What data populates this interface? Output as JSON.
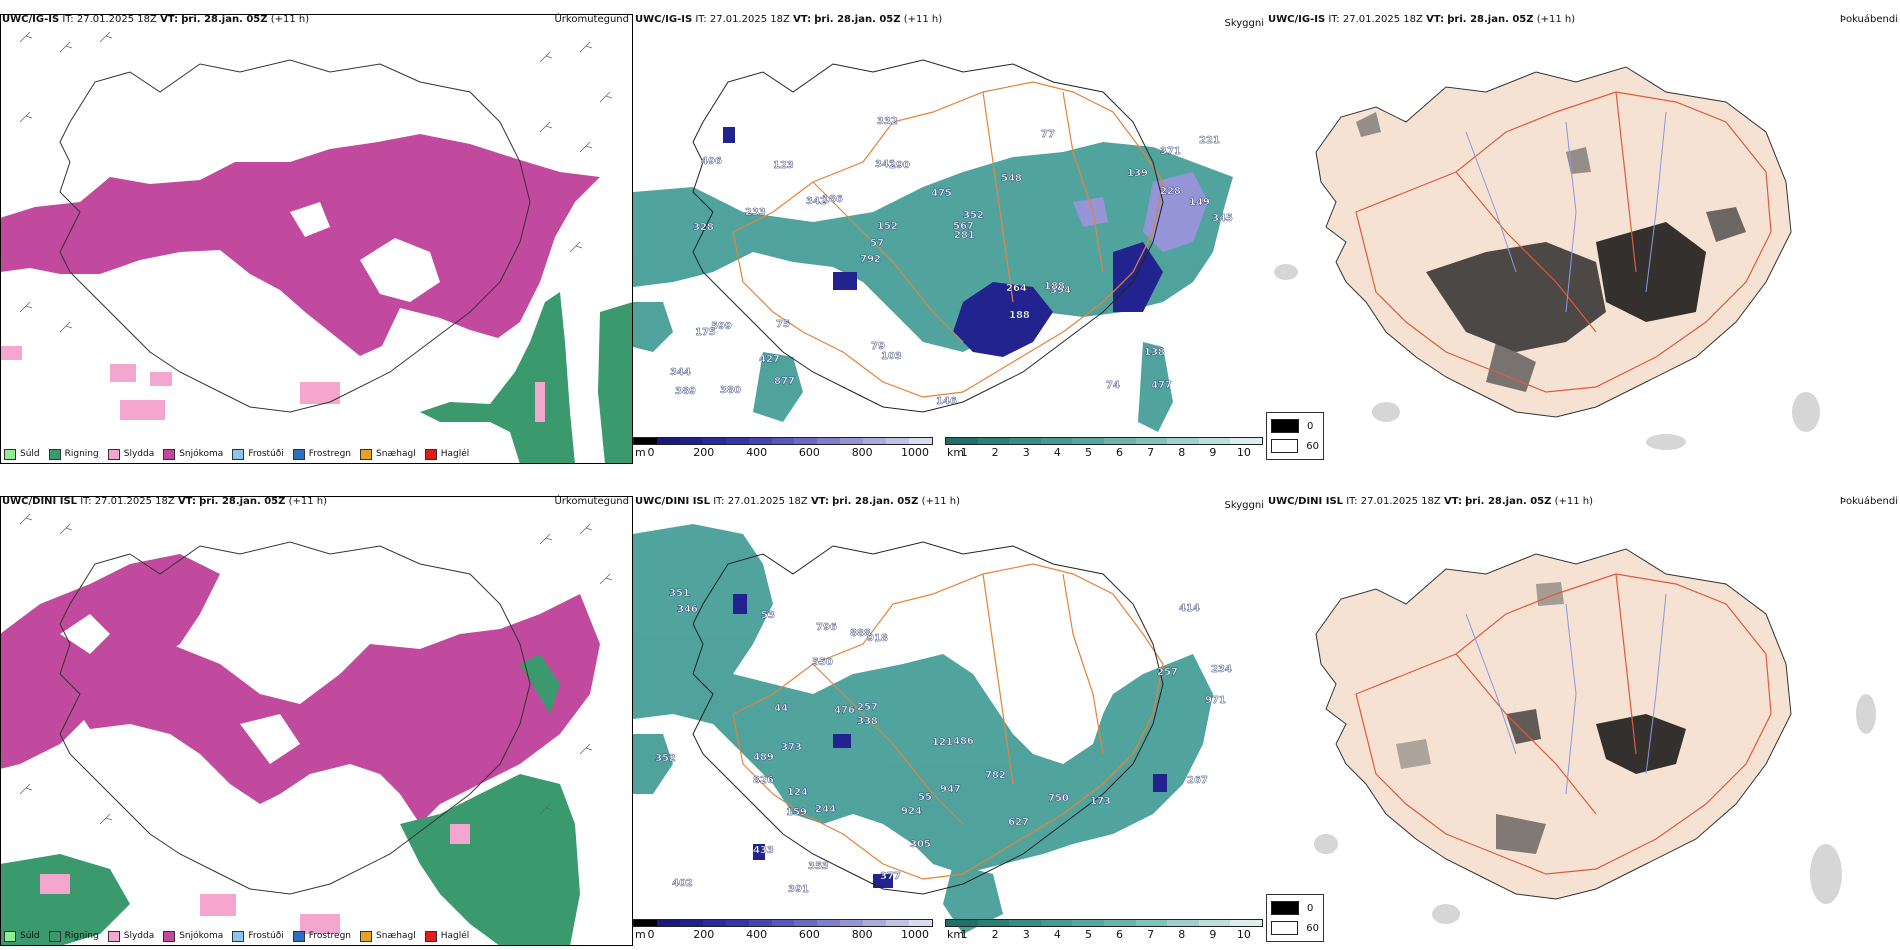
{
  "rows": [
    {
      "model": "UWC/IG-IS",
      "it_label": "IT:",
      "it_value": "27.01.2025 18Z",
      "vt_label": "VT:",
      "vt_value": "þri. 28.jan. 05Z",
      "lead": "(+11 h)",
      "precip_numbers": [
        "477",
        "328",
        "371",
        "792",
        "548",
        "380",
        "341",
        "475",
        "599",
        "186",
        "344",
        "427",
        "290",
        "352",
        "394",
        "496",
        "332",
        "345",
        "264",
        "228",
        "57",
        "79",
        "152",
        "123",
        "77",
        "75",
        "74",
        "138",
        "188",
        "146",
        "342",
        "233",
        "188",
        "877",
        "149",
        "567",
        "389",
        "103",
        "281",
        "175",
        "139",
        "221"
      ],
      "fog_density": "high"
    },
    {
      "model": "UWC/DINI ISL",
      "it_label": "IT:",
      "it_value": "27.01.2025 18Z",
      "vt_label": "VT:",
      "vt_value": "þri. 28.jan. 05Z",
      "lead": "(+11 h)",
      "precip_numbers": [
        "346",
        "351",
        "352",
        "414",
        "234",
        "627",
        "918",
        "244",
        "402",
        "750",
        "159",
        "486",
        "391",
        "826",
        "55",
        "476",
        "924",
        "433",
        "550",
        "257",
        "971",
        "305",
        "353",
        "373",
        "489",
        "947",
        "124",
        "173",
        "377",
        "888",
        "782",
        "796",
        "257",
        "267",
        "121",
        "44",
        "53",
        "338"
      ],
      "fog_density": "low"
    }
  ],
  "panel_names": {
    "precip_type": "Úrkomutegund",
    "cloud": "Skyggni",
    "fog": "Þokuábendi"
  },
  "precip_legend": [
    {
      "label": "Súld",
      "color": "#90ee90"
    },
    {
      "label": "Rigning",
      "color": "#3a9a6e"
    },
    {
      "label": "Slydda",
      "color": "#f4a6cf"
    },
    {
      "label": "Snjókoma",
      "color": "#c14a9f"
    },
    {
      "label": "Frostúði",
      "color": "#8fc4ef"
    },
    {
      "label": "Frostregn",
      "color": "#2f6fc2"
    },
    {
      "label": "Snæhagl",
      "color": "#e9a02a"
    },
    {
      "label": "Haglél",
      "color": "#e41b1b"
    }
  ],
  "cloud_base_bar": {
    "unit": "m",
    "ticks": [
      "0",
      "200",
      "400",
      "600",
      "800",
      "1000"
    ],
    "colors": [
      "#000000",
      "#1a1a7a",
      "#20208a",
      "#2a2a9a",
      "#3535a8",
      "#4545b2",
      "#5757bb",
      "#6a6ac4",
      "#7e7ecd",
      "#9494d6",
      "#aaaade",
      "#c2c2e8",
      "#dadaf2"
    ]
  },
  "visibility_bar": {
    "unit": "km",
    "ticks": [
      "1",
      "2",
      "3",
      "4",
      "5",
      "6",
      "7",
      "8",
      "9",
      "10"
    ],
    "colors": [
      "#1f6f6a",
      "#2a7f79",
      "#368c86",
      "#449a94",
      "#57a7a1",
      "#6cb4ae",
      "#84c2bc",
      "#9fd0cb",
      "#bcdfdb",
      "#dcefed"
    ]
  },
  "fog_legend": [
    {
      "label": "0",
      "color": "#000000"
    },
    {
      "label": "60",
      "color": "#ffffff"
    }
  ],
  "colors": {
    "snow": "#c14a9f",
    "rain": "#3a9a6e",
    "sleet": "#f4a6cf",
    "teal": "#3e9a93",
    "navy": "#23238f",
    "land": "#f5e2d3",
    "road": "#e3833a",
    "river": "#8899dd"
  }
}
